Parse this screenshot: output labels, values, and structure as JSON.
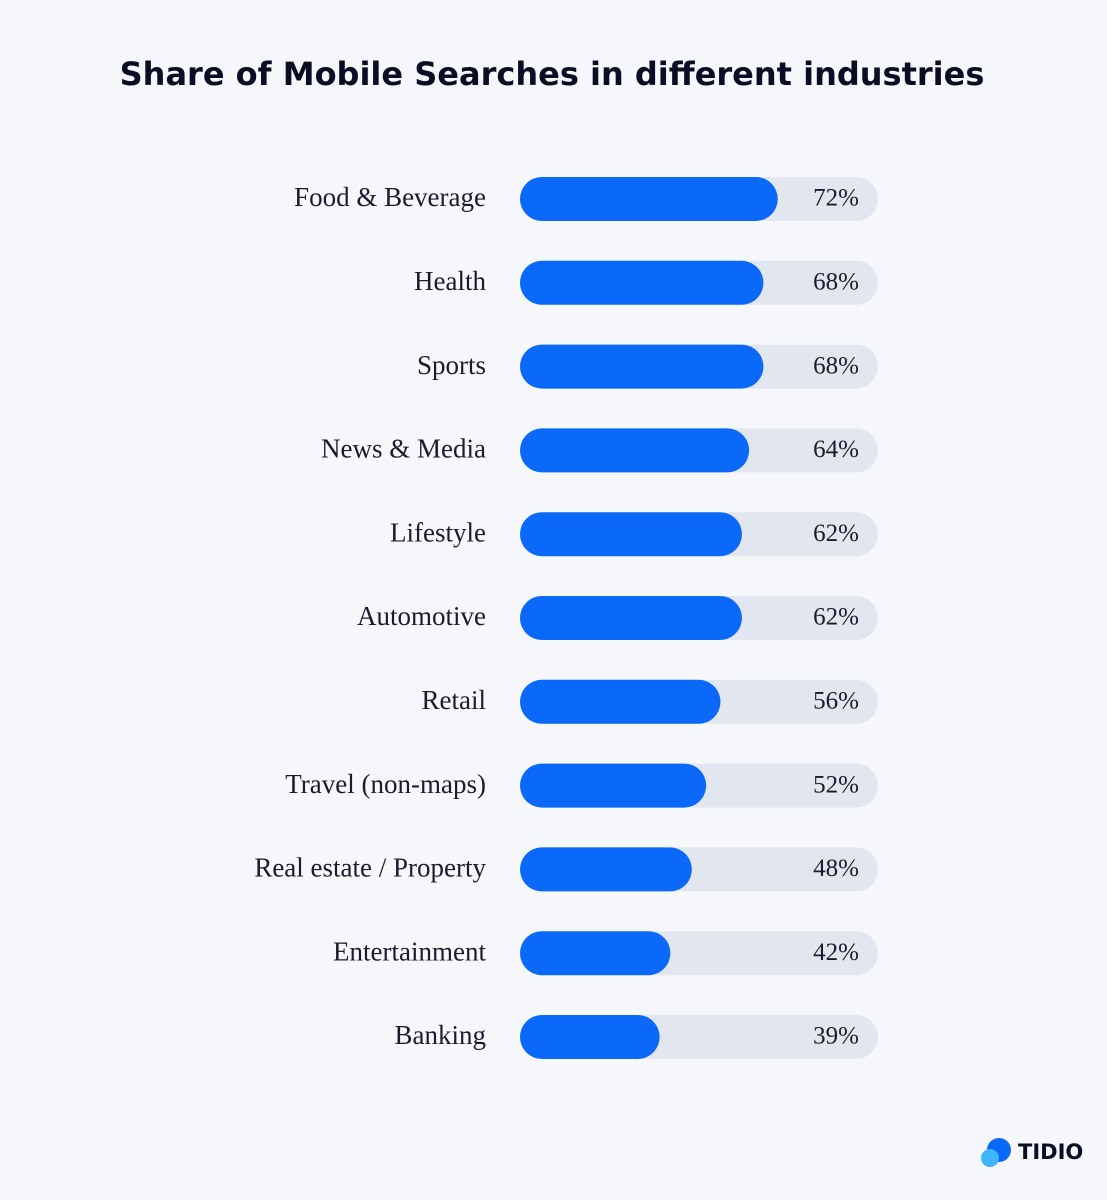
{
  "chart_data": {
    "type": "bar",
    "orientation": "horizontal",
    "title": "Share of Mobile Searches in different industries",
    "categories": [
      "Food & Beverage",
      "Health",
      "Sports",
      "News & Media",
      "Lifestyle",
      "Automotive",
      "Retail",
      "Travel (non-maps)",
      "Real estate / Property",
      "Entertainment",
      "Banking"
    ],
    "values": [
      72,
      68,
      68,
      64,
      62,
      62,
      56,
      52,
      48,
      42,
      39
    ],
    "value_labels": [
      "72%",
      "68%",
      "68%",
      "64%",
      "62%",
      "62%",
      "56%",
      "52%",
      "48%",
      "42%",
      "39%"
    ],
    "color": "#0b69fa",
    "track_color": "#e2e7ef",
    "xlim": [
      0,
      100
    ]
  },
  "logo": "TIDIO"
}
